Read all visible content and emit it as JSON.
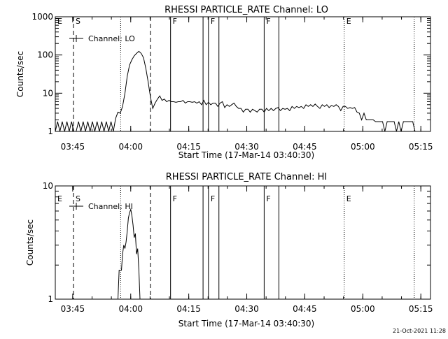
{
  "date_stamp": "21-Oct-2021 11:28",
  "colors": {
    "background": "#ffffff",
    "foreground": "#000000"
  },
  "chart_data": [
    {
      "type": "line",
      "title": "RHESSI PARTICLE_RATE Channel: LO",
      "xlabel": "Start Time (17-Mar-14 03:40:30)",
      "ylabel": "Counts/sec",
      "x_unit": "minutes after 03:40:30",
      "xlim": [
        0,
        97
      ],
      "ylim": [
        1,
        1000
      ],
      "y_scale": "log",
      "grid": false,
      "legend": {
        "placement": "top-left",
        "entries": [
          "Channel: LO"
        ]
      },
      "x_ticks": [
        "03:45",
        "04:00",
        "04:15",
        "04:30",
        "04:45",
        "05:00",
        "05:15"
      ],
      "y_ticks": [
        "1",
        "10",
        "100",
        "1000"
      ],
      "flags": [
        {
          "letter": "E",
          "x": 0,
          "style": "dotted"
        },
        {
          "letter": "S",
          "x": 4.7,
          "style": "dashed"
        },
        {
          "letter": "",
          "x": 16.9,
          "style": "dotted"
        },
        {
          "letter": "",
          "x": 24.6,
          "style": "dashed"
        },
        {
          "letter": "F",
          "x": 29.8,
          "style": "solid"
        },
        {
          "letter": "",
          "x": 38.2,
          "style": "solid"
        },
        {
          "letter": "F",
          "x": 39.6,
          "style": "solid"
        },
        {
          "letter": "",
          "x": 42.3,
          "style": "solid"
        },
        {
          "letter": "F",
          "x": 54.0,
          "style": "solid"
        },
        {
          "letter": "",
          "x": 57.8,
          "style": "solid"
        },
        {
          "letter": "E",
          "x": 74.7,
          "style": "dotted"
        },
        {
          "letter": "",
          "x": 92.8,
          "style": "dotted"
        }
      ],
      "series": [
        {
          "name": "Channel: LO",
          "points": [
            [
              0,
              1.0
            ],
            [
              0.6,
              1.8
            ],
            [
              1.2,
              1.0
            ],
            [
              1.8,
              1.8
            ],
            [
              2.4,
              1.0
            ],
            [
              3.0,
              1.8
            ],
            [
              3.6,
              1.0
            ],
            [
              4.2,
              1.8
            ],
            [
              4.8,
              1.0
            ],
            [
              5.4,
              1.0
            ],
            [
              6.0,
              1.8
            ],
            [
              6.6,
              1.0
            ],
            [
              7.2,
              1.8
            ],
            [
              7.8,
              1.0
            ],
            [
              8.4,
              1.8
            ],
            [
              9.0,
              1.0
            ],
            [
              9.6,
              1.8
            ],
            [
              10.2,
              1.0
            ],
            [
              10.8,
              1.8
            ],
            [
              11.4,
              1.0
            ],
            [
              12.0,
              1.8
            ],
            [
              12.6,
              1.0
            ],
            [
              13.2,
              1.8
            ],
            [
              13.8,
              1.0
            ],
            [
              14.4,
              1.8
            ],
            [
              15.0,
              1.0
            ],
            [
              15.6,
              2.2
            ],
            [
              16.2,
              3.2
            ],
            [
              16.8,
              3.0
            ],
            [
              17.4,
              4.5
            ],
            [
              18.0,
              10
            ],
            [
              18.6,
              28
            ],
            [
              19.2,
              55
            ],
            [
              19.8,
              75
            ],
            [
              20.4,
              95
            ],
            [
              21.0,
              110
            ],
            [
              21.6,
              125
            ],
            [
              22.2,
              110
            ],
            [
              22.8,
              85
            ],
            [
              23.4,
              45
            ],
            [
              24.0,
              20
            ],
            [
              24.6,
              8
            ],
            [
              25.2,
              4.0
            ],
            [
              25.8,
              5.5
            ],
            [
              26.4,
              7.0
            ],
            [
              27.0,
              8.5
            ],
            [
              27.6,
              6.5
            ],
            [
              28.2,
              7.0
            ],
            [
              28.8,
              6.0
            ],
            [
              29.4,
              6.5
            ],
            [
              30.0,
              6.0
            ],
            [
              30.6,
              6.0
            ],
            [
              31.2,
              5.8
            ],
            [
              31.8,
              6.0
            ],
            [
              32.4,
              6.0
            ],
            [
              33.0,
              6.5
            ],
            [
              33.6,
              5.5
            ],
            [
              34.2,
              6.0
            ],
            [
              34.8,
              6.0
            ],
            [
              35.4,
              5.8
            ],
            [
              36.0,
              6.0
            ],
            [
              36.6,
              5.5
            ],
            [
              37.2,
              6.0
            ],
            [
              37.8,
              5.0
            ],
            [
              38.4,
              6.5
            ],
            [
              39.0,
              5.0
            ],
            [
              39.6,
              5.8
            ],
            [
              40.2,
              5.0
            ],
            [
              40.8,
              5.5
            ],
            [
              41.4,
              5.5
            ],
            [
              42.0,
              4.5
            ],
            [
              42.6,
              5.5
            ],
            [
              43.2,
              6.0
            ],
            [
              43.8,
              4.2
            ],
            [
              44.4,
              5.0
            ],
            [
              45.0,
              4.5
            ],
            [
              45.6,
              5.0
            ],
            [
              46.2,
              5.5
            ],
            [
              46.8,
              4.5
            ],
            [
              47.4,
              4.0
            ],
            [
              48.0,
              4.0
            ],
            [
              48.6,
              3.2
            ],
            [
              49.2,
              3.8
            ],
            [
              49.8,
              3.8
            ],
            [
              50.4,
              3.2
            ],
            [
              51.0,
              3.8
            ],
            [
              51.6,
              3.5
            ],
            [
              52.2,
              3.2
            ],
            [
              52.8,
              3.8
            ],
            [
              53.4,
              3.8
            ],
            [
              54.0,
              3.2
            ],
            [
              54.6,
              4.0
            ],
            [
              55.2,
              3.5
            ],
            [
              55.8,
              4.0
            ],
            [
              56.4,
              3.5
            ],
            [
              57.0,
              4.0
            ],
            [
              57.6,
              4.2
            ],
            [
              58.2,
              3.5
            ],
            [
              58.8,
              4.0
            ],
            [
              59.4,
              3.8
            ],
            [
              60.0,
              4.0
            ],
            [
              60.6,
              3.5
            ],
            [
              61.2,
              4.5
            ],
            [
              61.8,
              4.0
            ],
            [
              62.4,
              4.5
            ],
            [
              63.0,
              4.2
            ],
            [
              63.6,
              4.5
            ],
            [
              64.2,
              4.0
            ],
            [
              64.8,
              5.0
            ],
            [
              65.4,
              4.5
            ],
            [
              66.0,
              5.0
            ],
            [
              66.6,
              4.5
            ],
            [
              67.2,
              5.2
            ],
            [
              67.8,
              4.5
            ],
            [
              68.4,
              4.0
            ],
            [
              69.0,
              5.0
            ],
            [
              69.6,
              4.5
            ],
            [
              70.2,
              5.0
            ],
            [
              70.8,
              4.2
            ],
            [
              71.4,
              4.8
            ],
            [
              72.0,
              4.5
            ],
            [
              72.6,
              5.0
            ],
            [
              73.2,
              4.5
            ],
            [
              73.8,
              3.5
            ],
            [
              74.4,
              4.5
            ],
            [
              75.0,
              4.5
            ],
            [
              75.6,
              4.0
            ],
            [
              76.2,
              4.2
            ],
            [
              76.8,
              4.0
            ],
            [
              77.4,
              4.2
            ],
            [
              78.0,
              3.2
            ],
            [
              78.6,
              3.0
            ],
            [
              79.2,
              2.0
            ],
            [
              79.8,
              3.0
            ],
            [
              80.4,
              2.0
            ],
            [
              81.0,
              2.0
            ],
            [
              81.6,
              2.0
            ],
            [
              82.2,
              2.0
            ],
            [
              82.8,
              1.8
            ],
            [
              83.4,
              1.8
            ],
            [
              84.0,
              1.8
            ],
            [
              84.6,
              1.8
            ],
            [
              85.2,
              1.0
            ],
            [
              85.8,
              1.8
            ],
            [
              86.4,
              1.8
            ],
            [
              87.0,
              1.8
            ],
            [
              87.6,
              1.8
            ],
            [
              88.2,
              1.0
            ],
            [
              88.8,
              1.8
            ],
            [
              89.4,
              1.0
            ],
            [
              90.0,
              1.8
            ],
            [
              90.6,
              1.8
            ],
            [
              91.2,
              1.8
            ],
            [
              91.8,
              1.8
            ],
            [
              92.4,
              1.8
            ],
            [
              93.0,
              1.0
            ]
          ]
        }
      ]
    },
    {
      "type": "line",
      "title": "RHESSI PARTICLE_RATE Channel: HI",
      "xlabel": "Start Time (17-Mar-14 03:40:30)",
      "ylabel": "Counts/sec",
      "x_unit": "minutes after 03:40:30",
      "xlim": [
        0,
        97
      ],
      "ylim": [
        1,
        10
      ],
      "y_scale": "log",
      "grid": false,
      "legend": {
        "placement": "top-left",
        "entries": [
          "Channel: HI"
        ]
      },
      "x_ticks": [
        "03:45",
        "04:00",
        "04:15",
        "04:30",
        "04:45",
        "05:00",
        "05:15"
      ],
      "y_ticks": [
        "1",
        "10"
      ],
      "flags": [
        {
          "letter": "E",
          "x": 0,
          "style": "dotted"
        },
        {
          "letter": "S",
          "x": 4.7,
          "style": "dashed"
        },
        {
          "letter": "",
          "x": 16.9,
          "style": "dotted"
        },
        {
          "letter": "",
          "x": 24.6,
          "style": "dashed"
        },
        {
          "letter": "F",
          "x": 29.8,
          "style": "solid"
        },
        {
          "letter": "",
          "x": 38.2,
          "style": "solid"
        },
        {
          "letter": "F",
          "x": 39.6,
          "style": "solid"
        },
        {
          "letter": "",
          "x": 42.3,
          "style": "solid"
        },
        {
          "letter": "F",
          "x": 54.0,
          "style": "solid"
        },
        {
          "letter": "",
          "x": 57.8,
          "style": "solid"
        },
        {
          "letter": "E",
          "x": 74.7,
          "style": "dotted"
        },
        {
          "letter": "",
          "x": 92.8,
          "style": "dotted"
        }
      ],
      "series": [
        {
          "name": "Channel: HI",
          "points": [
            [
              16.2,
              1.0
            ],
            [
              16.5,
              1.8
            ],
            [
              17.1,
              1.8
            ],
            [
              17.4,
              2.5
            ],
            [
              17.7,
              3.0
            ],
            [
              18.0,
              2.8
            ],
            [
              18.3,
              3.2
            ],
            [
              18.6,
              4.0
            ],
            [
              18.9,
              5.2
            ],
            [
              19.2,
              5.8
            ],
            [
              19.5,
              6.2
            ],
            [
              19.8,
              5.5
            ],
            [
              20.1,
              4.5
            ],
            [
              20.4,
              3.5
            ],
            [
              20.7,
              3.8
            ],
            [
              21.0,
              2.5
            ],
            [
              21.3,
              2.8
            ],
            [
              21.6,
              1.8
            ],
            [
              21.9,
              1.0
            ]
          ]
        }
      ]
    }
  ]
}
